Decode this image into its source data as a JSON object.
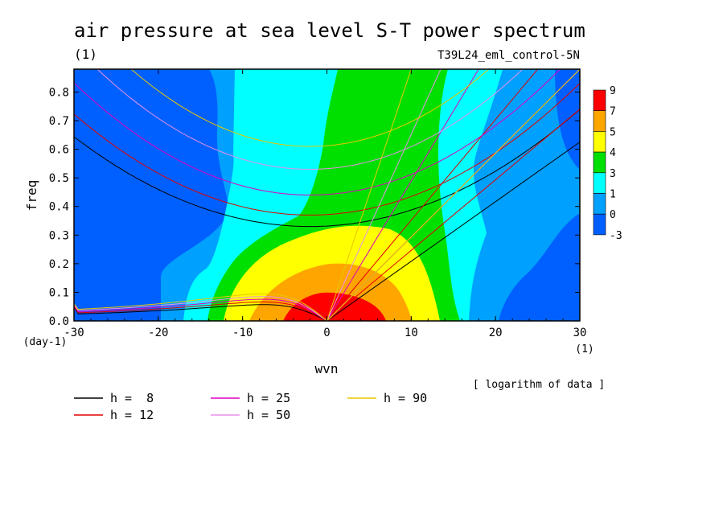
{
  "chart_data": {
    "type": "heatmap",
    "title": "air pressure at sea level S-T power spectrum",
    "title_units": "(1)",
    "subtitle": "T39L24_eml_control-5N",
    "xlabel": "wvn",
    "ylabel": "freq",
    "x_units": "(1)",
    "y_units": "(day-1)",
    "xlim": [
      -30,
      30
    ],
    "ylim": [
      0,
      0.88
    ],
    "x_ticks": [
      "-30",
      "-20",
      "-10",
      "0",
      "10",
      "20",
      "30"
    ],
    "y_ticks": [
      "0.0",
      "0.1",
      "0.2",
      "0.3",
      "0.4",
      "0.5",
      "0.6",
      "0.7",
      "0.8"
    ],
    "note": "[ logarithm of data ]",
    "colorbar": {
      "labels": [
        "9",
        "7",
        "5",
        "4",
        "3",
        "1",
        "0",
        "-3"
      ],
      "bins": [
        {
          "range": "7 to 9",
          "color": "#ff0000"
        },
        {
          "range": "5 to 7",
          "color": "#ffa500"
        },
        {
          "range": "4 to 5",
          "color": "#ffff00"
        },
        {
          "range": "3 to 4",
          "color": "#00e000"
        },
        {
          "range": "1 to 3",
          "color": "#00ffff"
        },
        {
          "range": "0 to 1",
          "color": "#00a0ff"
        },
        {
          "range": "-3 to 0",
          "color": "#0060ff"
        }
      ]
    },
    "dispersion_curves": [
      {
        "name": "h =  8",
        "h": 8,
        "color": "#000000"
      },
      {
        "name": "h = 12",
        "h": 12,
        "color": "#e00000"
      },
      {
        "name": "h = 25",
        "h": 25,
        "color": "#e000c0"
      },
      {
        "name": "h = 50",
        "h": 50,
        "color": "#e890e8"
      },
      {
        "name": "h = 90",
        "h": 90,
        "color": "#e8c800"
      }
    ],
    "kelvin_lines_end_x": [
      {
        "h": 8,
        "x_at_freq_max": 30
      },
      {
        "h": 12,
        "x_at_freq_max": 25
      },
      {
        "h": 25,
        "x_at_freq_max": 18
      },
      {
        "h": 50,
        "x_at_freq_max": 13.5
      },
      {
        "h": 90,
        "x_at_freq_max": 10
      }
    ],
    "ig_min_freq": [
      {
        "h": 8,
        "freq": 0.33
      },
      {
        "h": 12,
        "freq": 0.37
      },
      {
        "h": 25,
        "freq": 0.44
      },
      {
        "h": 50,
        "freq": 0.53
      },
      {
        "h": 90,
        "freq": 0.61
      }
    ],
    "rossby_freq_at_x30": [
      {
        "h": 8,
        "freq": 0.05
      },
      {
        "h": 12,
        "freq": 0.052
      },
      {
        "h": 25,
        "freq": 0.055
      },
      {
        "h": 50,
        "freq": 0.058
      },
      {
        "h": 90,
        "freq": 0.06
      }
    ]
  }
}
